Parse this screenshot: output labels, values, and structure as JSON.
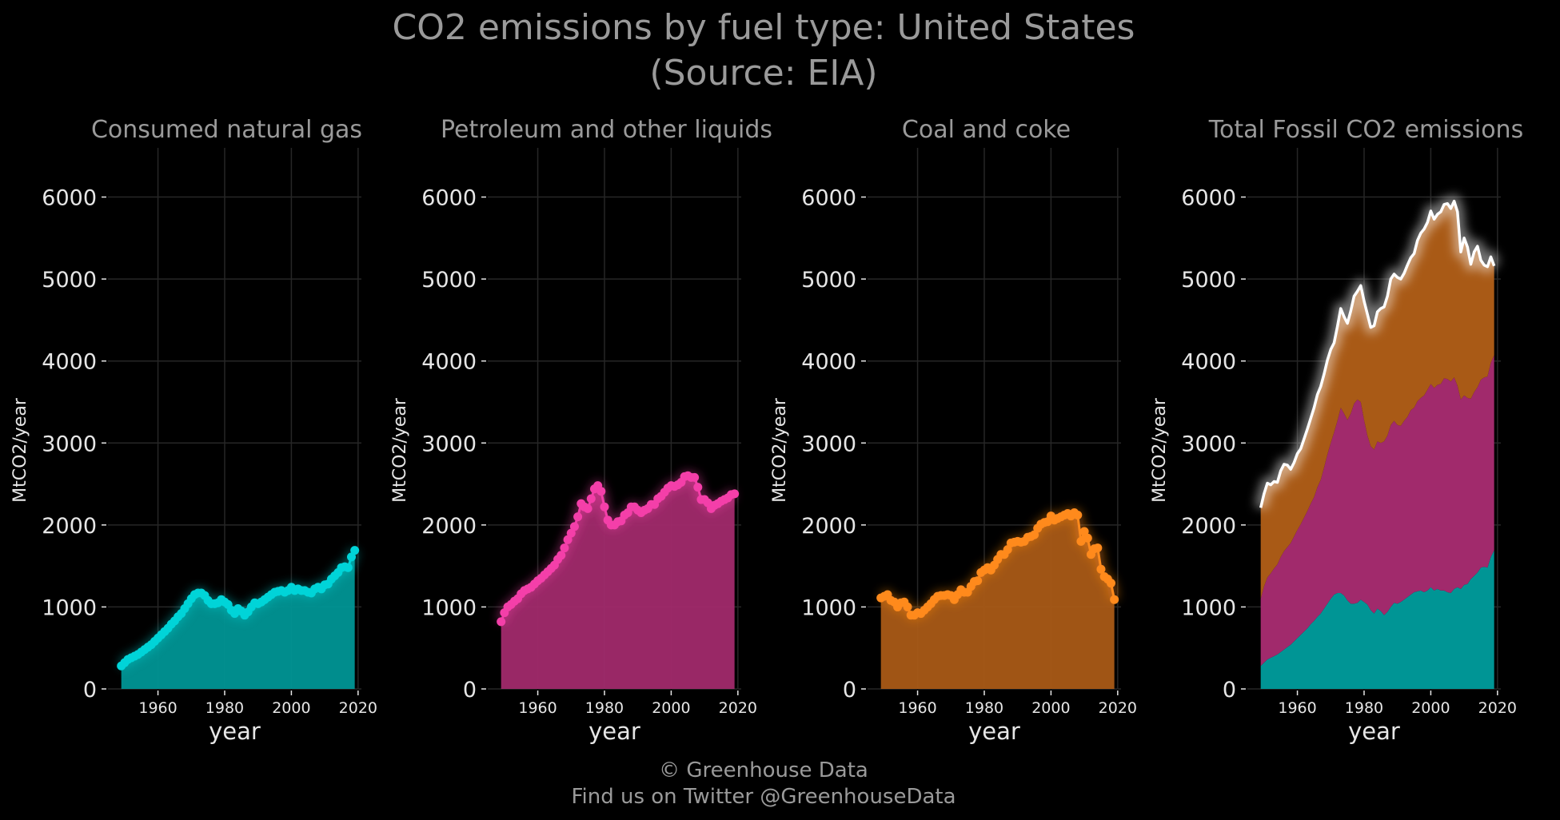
{
  "title_line1": "CO2 emissions by fuel type: United States",
  "title_line2": "(Source: EIA)",
  "caption_line1": "© Greenhouse Data",
  "caption_line2": "Find us on Twitter @GreenhouseData",
  "colors": {
    "background": "#000000",
    "gas": "#00d4d8",
    "gas_fill": "#009595",
    "petroleum": "#f43fa9",
    "petroleum_fill": "#a12a6c",
    "coal": "#ff8a1c",
    "coal_fill": "#a95a16",
    "total_line": "#ffffff",
    "grid": "#262626",
    "text_title": "#9a9a9a",
    "text_axis": "#e6e6e6"
  },
  "chart_data": [
    {
      "type": "area",
      "title": "Consumed natural gas",
      "xlabel": "year",
      "ylabel": "MtCO2/year",
      "xlim": [
        1945,
        2021
      ],
      "ylim": [
        0,
        6600
      ],
      "x_ticks": [
        1960,
        1980,
        2000,
        2020
      ],
      "y_ticks": [
        0,
        1000,
        2000,
        3000,
        4000,
        5000,
        6000
      ],
      "grid": true,
      "series": [
        {
          "x": [
            1949,
            1950,
            1951,
            1952,
            1953,
            1954,
            1955,
            1956,
            1957,
            1958,
            1959,
            1960,
            1961,
            1962,
            1963,
            1964,
            1965,
            1966,
            1967,
            1968,
            1969,
            1970,
            1971,
            1972,
            1973,
            1974,
            1975,
            1976,
            1977,
            1978,
            1979,
            1980,
            1981,
            1982,
            1983,
            1984,
            1985,
            1986,
            1987,
            1988,
            1989,
            1990,
            1991,
            1992,
            1993,
            1994,
            1995,
            1996,
            1997,
            1998,
            1999,
            2000,
            2001,
            2002,
            2003,
            2004,
            2005,
            2006,
            2007,
            2008,
            2009,
            2010,
            2011,
            2012,
            2013,
            2014,
            2015,
            2016,
            2017,
            2018,
            2019
          ],
          "values": [
            280,
            320,
            360,
            380,
            400,
            420,
            450,
            480,
            510,
            540,
            580,
            620,
            660,
            700,
            740,
            790,
            830,
            880,
            920,
            980,
            1040,
            1100,
            1150,
            1170,
            1170,
            1140,
            1080,
            1040,
            1040,
            1050,
            1090,
            1060,
            1030,
            960,
            920,
            980,
            950,
            900,
            940,
            1000,
            1050,
            1040,
            1060,
            1090,
            1120,
            1150,
            1180,
            1190,
            1200,
            1180,
            1200,
            1240,
            1200,
            1220,
            1200,
            1200,
            1180,
            1170,
            1220,
            1240,
            1220,
            1270,
            1280,
            1340,
            1380,
            1420,
            1480,
            1490,
            1480,
            1610,
            1690
          ]
        }
      ]
    },
    {
      "type": "area",
      "title": "Petroleum and other liquids",
      "xlabel": "year",
      "ylabel": "MtCO2/year",
      "xlim": [
        1945,
        2021
      ],
      "ylim": [
        0,
        6600
      ],
      "x_ticks": [
        1960,
        1980,
        2000,
        2020
      ],
      "y_ticks": [
        0,
        1000,
        2000,
        3000,
        4000,
        5000,
        6000
      ],
      "grid": true,
      "series": [
        {
          "x": [
            1949,
            1950,
            1951,
            1952,
            1953,
            1954,
            1955,
            1956,
            1957,
            1958,
            1959,
            1960,
            1961,
            1962,
            1963,
            1964,
            1965,
            1966,
            1967,
            1968,
            1969,
            1970,
            1971,
            1972,
            1973,
            1974,
            1975,
            1976,
            1977,
            1978,
            1979,
            1980,
            1981,
            1982,
            1983,
            1984,
            1985,
            1986,
            1987,
            1988,
            1989,
            1990,
            1991,
            1992,
            1993,
            1994,
            1995,
            1996,
            1997,
            1998,
            1999,
            2000,
            2001,
            2002,
            2003,
            2004,
            2005,
            2006,
            2007,
            2008,
            2009,
            2010,
            2011,
            2012,
            2013,
            2014,
            2015,
            2016,
            2017,
            2018,
            2019
          ],
          "values": [
            820,
            930,
            1000,
            1030,
            1070,
            1100,
            1160,
            1200,
            1220,
            1240,
            1280,
            1320,
            1350,
            1390,
            1430,
            1470,
            1510,
            1580,
            1630,
            1720,
            1820,
            1900,
            1980,
            2100,
            2260,
            2220,
            2200,
            2320,
            2440,
            2480,
            2410,
            2220,
            2060,
            2000,
            2000,
            2040,
            2050,
            2120,
            2150,
            2220,
            2220,
            2180,
            2150,
            2180,
            2200,
            2250,
            2250,
            2320,
            2350,
            2400,
            2450,
            2480,
            2470,
            2490,
            2520,
            2590,
            2600,
            2580,
            2580,
            2460,
            2310,
            2310,
            2270,
            2200,
            2240,
            2260,
            2290,
            2310,
            2330,
            2370,
            2380
          ]
        }
      ]
    },
    {
      "type": "area",
      "title": "Coal and coke",
      "xlabel": "year",
      "ylabel": "MtCO2/year",
      "xlim": [
        1945,
        2021
      ],
      "ylim": [
        0,
        6600
      ],
      "x_ticks": [
        1960,
        1980,
        2000,
        2020
      ],
      "y_ticks": [
        0,
        1000,
        2000,
        3000,
        4000,
        5000,
        6000
      ],
      "grid": true,
      "series": [
        {
          "x": [
            1949,
            1950,
            1951,
            1952,
            1953,
            1954,
            1955,
            1956,
            1957,
            1958,
            1959,
            1960,
            1961,
            1962,
            1963,
            1964,
            1965,
            1966,
            1967,
            1968,
            1969,
            1970,
            1971,
            1972,
            1973,
            1974,
            1975,
            1976,
            1977,
            1978,
            1979,
            1980,
            1981,
            1982,
            1983,
            1984,
            1985,
            1986,
            1987,
            1988,
            1989,
            1990,
            1991,
            1992,
            1993,
            1994,
            1995,
            1996,
            1997,
            1998,
            1999,
            2000,
            2001,
            2002,
            2003,
            2004,
            2005,
            2006,
            2007,
            2008,
            2009,
            2010,
            2011,
            2012,
            2013,
            2014,
            2015,
            2016,
            2017,
            2018,
            2019
          ],
          "values": [
            1110,
            1130,
            1150,
            1080,
            1060,
            1000,
            1050,
            1060,
            1000,
            900,
            900,
            930,
            920,
            960,
            1000,
            1040,
            1090,
            1130,
            1140,
            1140,
            1150,
            1140,
            1090,
            1150,
            1210,
            1180,
            1180,
            1250,
            1310,
            1320,
            1420,
            1450,
            1480,
            1450,
            1510,
            1580,
            1640,
            1640,
            1700,
            1780,
            1790,
            1800,
            1790,
            1800,
            1850,
            1860,
            1880,
            1960,
            2010,
            2030,
            2040,
            2110,
            2060,
            2080,
            2100,
            2120,
            2140,
            2110,
            2150,
            2120,
            1800,
            1920,
            1840,
            1640,
            1710,
            1720,
            1460,
            1370,
            1340,
            1290,
            1090
          ]
        }
      ]
    },
    {
      "type": "area",
      "title": "Total Fossil CO2 emissions",
      "xlabel": "year",
      "ylabel": "MtCO2/year",
      "xlim": [
        1945,
        2021
      ],
      "ylim": [
        0,
        6600
      ],
      "x_ticks": [
        1960,
        1980,
        2000,
        2020
      ],
      "y_ticks": [
        0,
        1000,
        2000,
        3000,
        4000,
        5000,
        6000
      ],
      "grid": true,
      "stacked": true,
      "series": [
        {
          "source": "Consumed natural gas"
        },
        {
          "source": "Petroleum and other liquids"
        },
        {
          "source": "Coal and coke"
        }
      ]
    }
  ]
}
